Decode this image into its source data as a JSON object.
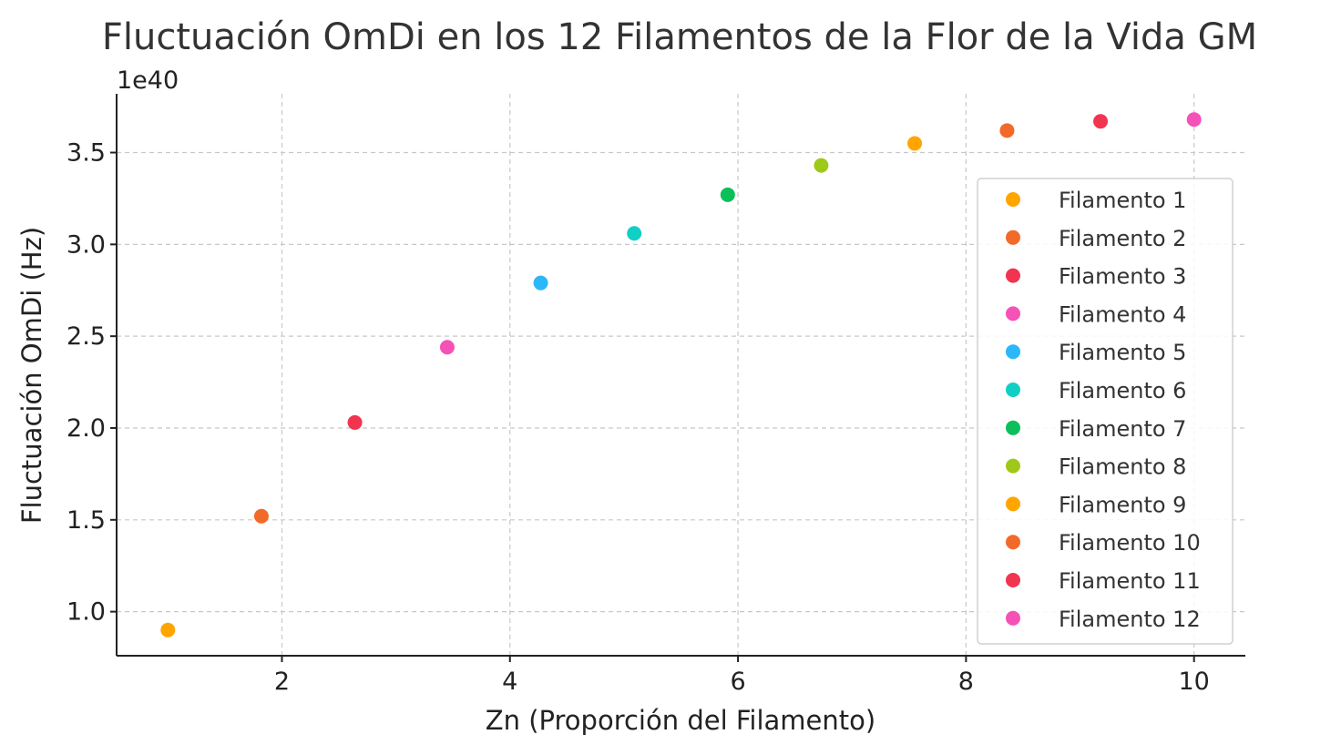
{
  "chart_data": {
    "type": "scatter",
    "title": "Fluctuación OmDi en los 12 Filamentos de la Flor de la Vida GM",
    "xlabel": "Zn (Proporción del Filamento)",
    "ylabel": "Fluctuación OmDi (Hz)",
    "y_offset_text": "1e40",
    "xlim": [
      0.55,
      10.45
    ],
    "ylim": [
      0.76,
      3.82
    ],
    "x_ticks": [
      2,
      4,
      6,
      8,
      10
    ],
    "x_tick_labels": [
      "2",
      "4",
      "6",
      "8",
      "10"
    ],
    "y_ticks": [
      1.0,
      1.5,
      2.0,
      2.5,
      3.0,
      3.5
    ],
    "y_tick_labels": [
      "1.0",
      "1.5",
      "2.0",
      "2.5",
      "3.0",
      "3.5"
    ],
    "grid": true,
    "legend_position": "right",
    "series": [
      {
        "name": "Filamento 1",
        "color": "#FFA500",
        "x": 1.0,
        "y": 0.9
      },
      {
        "name": "Filamento 2",
        "color": "#F26A2A",
        "x": 1.82,
        "y": 1.52
      },
      {
        "name": "Filamento 3",
        "color": "#F1344F",
        "x": 2.64,
        "y": 2.03
      },
      {
        "name": "Filamento 4",
        "color": "#F552B8",
        "x": 3.45,
        "y": 2.44
      },
      {
        "name": "Filamento 5",
        "color": "#2BB8F8",
        "x": 4.27,
        "y": 2.79
      },
      {
        "name": "Filamento 6",
        "color": "#10CFC4",
        "x": 5.09,
        "y": 3.06
      },
      {
        "name": "Filamento 7",
        "color": "#0BC05A",
        "x": 5.91,
        "y": 3.27
      },
      {
        "name": "Filamento 8",
        "color": "#9FC919",
        "x": 6.73,
        "y": 3.43
      },
      {
        "name": "Filamento 9",
        "color": "#FFA500",
        "x": 7.55,
        "y": 3.55
      },
      {
        "name": "Filamento 10",
        "color": "#F26A2A",
        "x": 8.36,
        "y": 3.62
      },
      {
        "name": "Filamento 11",
        "color": "#F1344F",
        "x": 9.18,
        "y": 3.67
      },
      {
        "name": "Filamento 12",
        "color": "#F552B8",
        "x": 10.0,
        "y": 3.68
      }
    ]
  }
}
